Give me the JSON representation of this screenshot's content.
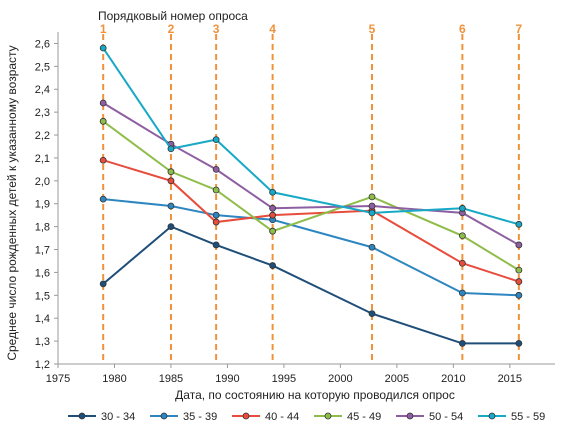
{
  "chart_data": {
    "type": "line",
    "top_label": "Порядковый номер опроса",
    "xlabel": "Дата, по состоянию на которую проводился опрос",
    "ylabel": "Среднее число рожденных детей к указанному возрасту",
    "xlim": [
      1975,
      2019
    ],
    "ylim": [
      1.2,
      2.65
    ],
    "x_ticks": [
      1975,
      1980,
      1985,
      1990,
      1995,
      2000,
      2005,
      2010,
      2015
    ],
    "y_ticks": [
      1.2,
      1.3,
      1.4,
      1.5,
      1.6,
      1.7,
      1.8,
      1.9,
      2.0,
      2.1,
      2.2,
      2.3,
      2.4,
      2.5,
      2.6
    ],
    "y_tick_labels": [
      "1,2",
      "1,3",
      "1,4",
      "1,5",
      "1,6",
      "1,7",
      "1,8",
      "1,9",
      "2,0",
      "2,1",
      "2,2",
      "2,3",
      "2,4",
      "2,5",
      "2,6"
    ],
    "surveys": [
      {
        "label": "1",
        "x": 1979
      },
      {
        "label": "2",
        "x": 1985
      },
      {
        "label": "3",
        "x": 1989
      },
      {
        "label": "4",
        "x": 1994
      },
      {
        "label": "5",
        "x": 2002.8
      },
      {
        "label": "6",
        "x": 2010.8
      },
      {
        "label": "7",
        "x": 2015.8
      }
    ],
    "survey_color": "#f0923a",
    "legend_position": "bottom",
    "grid": false,
    "series": [
      {
        "name": "30 - 34",
        "color": "#1f4e79",
        "values": [
          1.55,
          1.8,
          1.72,
          1.63,
          1.42,
          1.29,
          1.29
        ]
      },
      {
        "name": "35 - 39",
        "color": "#2e86c1",
        "values": [
          1.92,
          1.89,
          1.85,
          1.83,
          1.71,
          1.51,
          1.5
        ]
      },
      {
        "name": "40 - 44",
        "color": "#e74c3c",
        "values": [
          2.09,
          2.0,
          1.82,
          1.85,
          1.87,
          1.64,
          1.56
        ]
      },
      {
        "name": "45 - 49",
        "color": "#8ebd4a",
        "values": [
          2.26,
          2.04,
          1.96,
          1.78,
          1.93,
          1.76,
          1.61
        ]
      },
      {
        "name": "50 - 54",
        "color": "#8e5ea2",
        "values": [
          2.34,
          2.16,
          2.05,
          1.88,
          1.89,
          1.86,
          1.72
        ]
      },
      {
        "name": "55 - 59",
        "color": "#17a9c6",
        "values": [
          2.58,
          2.14,
          2.18,
          1.95,
          1.86,
          1.88,
          1.81
        ]
      }
    ]
  }
}
